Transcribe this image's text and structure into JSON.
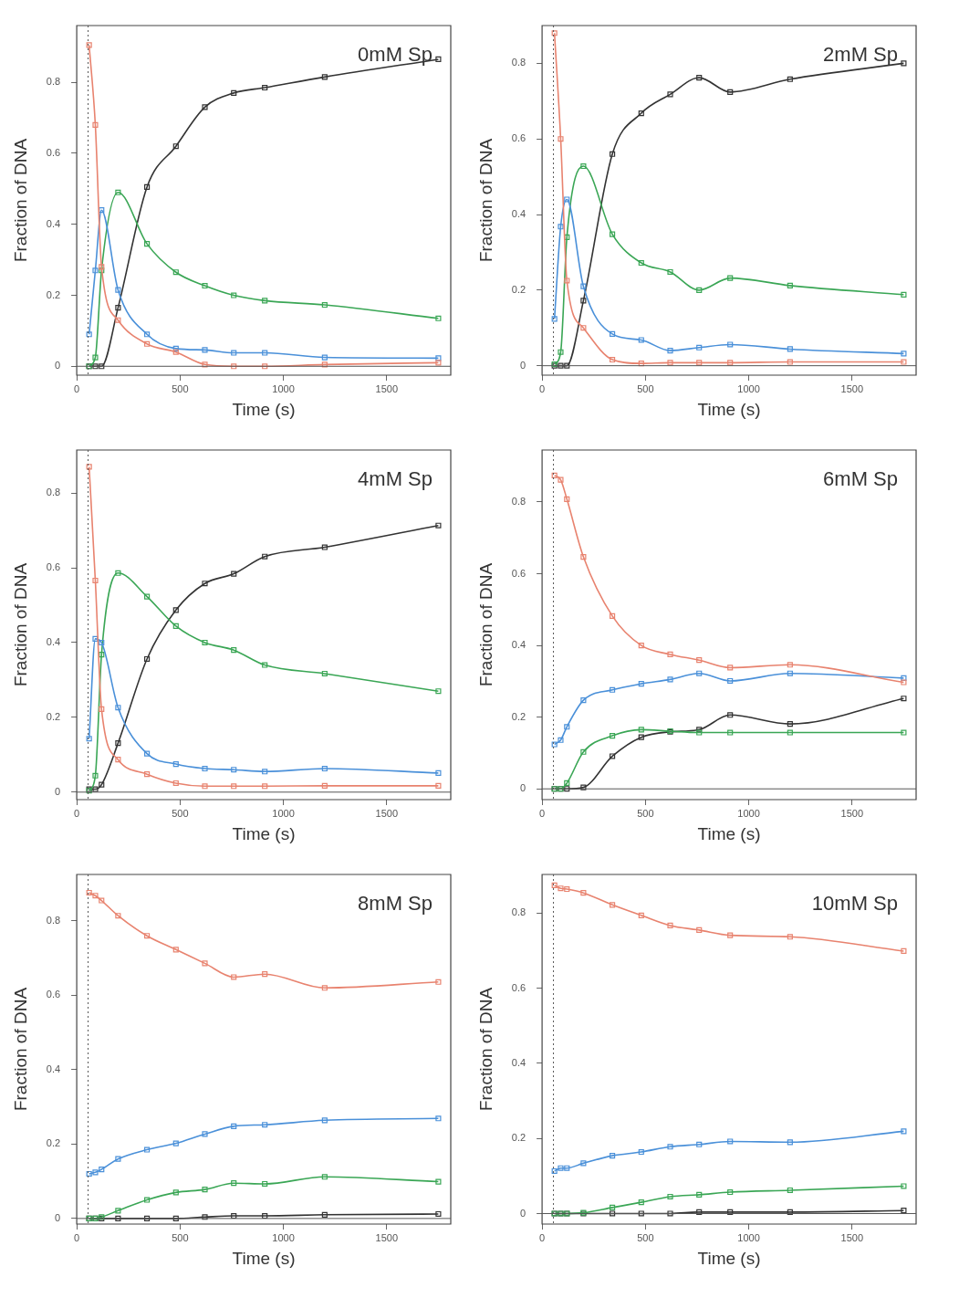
{
  "chart_data": [
    {
      "type": "line",
      "title": "0mM Sp",
      "xlabel": "Time (s)",
      "ylabel": "Fraction of DNA",
      "x": [
        60,
        90,
        120,
        200,
        340,
        480,
        620,
        760,
        910,
        1200,
        1750
      ],
      "xlim": [
        0,
        1810
      ],
      "xticks": [
        0,
        500,
        1000,
        1500
      ],
      "ylim": [
        -0.025,
        0.96
      ],
      "yticks": [
        0,
        0.2,
        0.4,
        0.6,
        0.8
      ],
      "marker": "square",
      "line_style": "solid",
      "grid": false,
      "legend": false,
      "ref_lines": [
        {
          "axis": "y",
          "value": 0,
          "color": "#555555",
          "line_style": "solid"
        },
        {
          "axis": "x",
          "value": 55,
          "color": "#555555",
          "line_style": "dotted"
        }
      ],
      "series": [
        {
          "color": "#e8836f",
          "values": [
            0.905,
            0.68,
            0.28,
            0.13,
            0.063,
            0.04,
            0.005,
            0,
            0,
            0.005,
            0.01
          ]
        },
        {
          "color": "#4a90d9",
          "values": [
            0.09,
            0.27,
            0.44,
            0.215,
            0.09,
            0.05,
            0.046,
            0.038,
            0.038,
            0.025,
            0.023
          ]
        },
        {
          "color": "#3aa655",
          "values": [
            0,
            0.025,
            0.27,
            0.49,
            0.345,
            0.265,
            0.227,
            0.2,
            0.185,
            0.173,
            0.135
          ]
        },
        {
          "color": "#333333",
          "values": [
            0,
            0,
            0,
            0.165,
            0.505,
            0.62,
            0.73,
            0.77,
            0.785,
            0.815,
            0.865
          ]
        }
      ]
    },
    {
      "type": "line",
      "title": "2mM Sp",
      "xlabel": "Time (s)",
      "ylabel": "Fraction of DNA",
      "x": [
        60,
        90,
        120,
        200,
        340,
        480,
        620,
        760,
        910,
        1200,
        1750
      ],
      "xlim": [
        0,
        1810
      ],
      "xticks": [
        0,
        500,
        1000,
        1500
      ],
      "ylim": [
        -0.025,
        0.9
      ],
      "yticks": [
        0,
        0.2,
        0.4,
        0.6,
        0.8
      ],
      "marker": "square",
      "line_style": "solid",
      "grid": false,
      "legend": false,
      "ref_lines": [
        {
          "axis": "y",
          "value": 0,
          "color": "#555555",
          "line_style": "solid"
        },
        {
          "axis": "x",
          "value": 55,
          "color": "#555555",
          "line_style": "dotted"
        }
      ],
      "series": [
        {
          "color": "#e8836f",
          "values": [
            0.88,
            0.6,
            0.225,
            0.1,
            0.016,
            0.006,
            0.008,
            0.008,
            0.008,
            0.01,
            0.01
          ]
        },
        {
          "color": "#4a90d9",
          "values": [
            0.124,
            0.368,
            0.44,
            0.21,
            0.084,
            0.068,
            0.04,
            0.048,
            0.056,
            0.044,
            0.032
          ]
        },
        {
          "color": "#3aa655",
          "values": [
            0.004,
            0.036,
            0.34,
            0.528,
            0.348,
            0.272,
            0.248,
            0.2,
            0.232,
            0.212,
            0.188
          ]
        },
        {
          "color": "#333333",
          "values": [
            0,
            0,
            0,
            0.172,
            0.56,
            0.668,
            0.718,
            0.762,
            0.724,
            0.758,
            0.8
          ]
        }
      ]
    },
    {
      "type": "line",
      "title": "4mM Sp",
      "xlabel": "Time (s)",
      "ylabel": "Fraction of DNA",
      "x": [
        60,
        90,
        120,
        200,
        340,
        480,
        620,
        760,
        910,
        1200,
        1750
      ],
      "xlim": [
        0,
        1810
      ],
      "xticks": [
        0,
        500,
        1000,
        1500
      ],
      "ylim": [
        -0.02,
        0.915
      ],
      "yticks": [
        0,
        0.2,
        0.4,
        0.6,
        0.8
      ],
      "marker": "square",
      "line_style": "solid",
      "grid": false,
      "legend": false,
      "ref_lines": [
        {
          "axis": "y",
          "value": 0,
          "color": "#555555",
          "line_style": "solid"
        },
        {
          "axis": "x",
          "value": 55,
          "color": "#555555",
          "line_style": "dotted"
        }
      ],
      "series": [
        {
          "color": "#e8836f",
          "values": [
            0.87,
            0.566,
            0.222,
            0.087,
            0.048,
            0.024,
            0.016,
            0.016,
            0.016,
            0.017,
            0.017
          ]
        },
        {
          "color": "#4a90d9",
          "values": [
            0.143,
            0.41,
            0.4,
            0.226,
            0.103,
            0.075,
            0.063,
            0.06,
            0.055,
            0.063,
            0.051
          ]
        },
        {
          "color": "#3aa655",
          "values": [
            0.004,
            0.044,
            0.368,
            0.586,
            0.523,
            0.444,
            0.4,
            0.38,
            0.34,
            0.317,
            0.27
          ]
        },
        {
          "color": "#333333",
          "values": [
            0.008,
            0.008,
            0.02,
            0.131,
            0.356,
            0.487,
            0.558,
            0.584,
            0.63,
            0.655,
            0.713
          ]
        }
      ]
    },
    {
      "type": "line",
      "title": "6mM Sp",
      "xlabel": "Time (s)",
      "ylabel": "Fraction of DNA",
      "x": [
        60,
        90,
        120,
        200,
        340,
        480,
        620,
        760,
        910,
        1200,
        1750
      ],
      "xlim": [
        0,
        1810
      ],
      "xticks": [
        0,
        500,
        1000,
        1500
      ],
      "ylim": [
        -0.03,
        0.945
      ],
      "yticks": [
        0,
        0.2,
        0.4,
        0.6,
        0.8
      ],
      "marker": "square",
      "line_style": "solid",
      "grid": false,
      "legend": false,
      "ref_lines": [
        {
          "axis": "y",
          "value": 0,
          "color": "#555555",
          "line_style": "solid"
        },
        {
          "axis": "x",
          "value": 55,
          "color": "#555555",
          "line_style": "dotted"
        }
      ],
      "series": [
        {
          "color": "#e8836f",
          "values": [
            0.874,
            0.862,
            0.808,
            0.647,
            0.482,
            0.4,
            0.375,
            0.359,
            0.338,
            0.346,
            0.297
          ]
        },
        {
          "color": "#4a90d9",
          "values": [
            0.124,
            0.136,
            0.173,
            0.247,
            0.276,
            0.293,
            0.305,
            0.322,
            0.301,
            0.322,
            0.309
          ]
        },
        {
          "color": "#3aa655",
          "values": [
            0,
            0,
            0.016,
            0.103,
            0.148,
            0.165,
            0.161,
            0.157,
            0.157,
            0.157,
            0.157
          ]
        },
        {
          "color": "#333333",
          "values": [
            0,
            0,
            0,
            0.004,
            0.091,
            0.144,
            0.159,
            0.165,
            0.206,
            0.181,
            0.252
          ]
        }
      ]
    },
    {
      "type": "line",
      "title": "8mM Sp",
      "xlabel": "Time (s)",
      "ylabel": "Fraction of DNA",
      "x": [
        60,
        90,
        120,
        200,
        340,
        480,
        620,
        760,
        910,
        1200,
        1750
      ],
      "xlim": [
        0,
        1810
      ],
      "xticks": [
        0,
        500,
        1000,
        1500
      ],
      "ylim": [
        -0.015,
        0.925
      ],
      "yticks": [
        0,
        0.2,
        0.4,
        0.6,
        0.8
      ],
      "marker": "square",
      "line_style": "solid",
      "grid": false,
      "legend": false,
      "ref_lines": [
        {
          "axis": "y",
          "value": 0,
          "color": "#555555",
          "line_style": "solid"
        },
        {
          "axis": "x",
          "value": 55,
          "color": "#555555",
          "line_style": "dotted"
        }
      ],
      "series": [
        {
          "color": "#e8836f",
          "values": [
            0.876,
            0.868,
            0.855,
            0.814,
            0.76,
            0.723,
            0.686,
            0.649,
            0.657,
            0.62,
            0.636
          ]
        },
        {
          "color": "#4a90d9",
          "values": [
            0.12,
            0.124,
            0.132,
            0.16,
            0.185,
            0.202,
            0.227,
            0.248,
            0.252,
            0.264,
            0.269
          ]
        },
        {
          "color": "#3aa655",
          "values": [
            0,
            0,
            0.004,
            0.021,
            0.05,
            0.07,
            0.078,
            0.095,
            0.093,
            0.112,
            0.099
          ]
        },
        {
          "color": "#333333",
          "values": [
            0,
            0,
            0,
            0,
            0,
            0,
            0.004,
            0.007,
            0.007,
            0.01,
            0.012
          ]
        }
      ]
    },
    {
      "type": "line",
      "title": "10mM Sp",
      "xlabel": "Time (s)",
      "ylabel": "Fraction of DNA",
      "x": [
        60,
        90,
        120,
        200,
        340,
        480,
        620,
        760,
        910,
        1200,
        1750
      ],
      "xlim": [
        0,
        1810
      ],
      "xticks": [
        0,
        500,
        1000,
        1500
      ],
      "ylim": [
        -0.028,
        0.903
      ],
      "yticks": [
        0,
        0.2,
        0.4,
        0.6,
        0.8
      ],
      "marker": "square",
      "line_style": "solid",
      "grid": false,
      "legend": false,
      "ref_lines": [
        {
          "axis": "y",
          "value": 0,
          "color": "#555555",
          "line_style": "solid"
        },
        {
          "axis": "x",
          "value": 55,
          "color": "#555555",
          "line_style": "dotted"
        }
      ],
      "series": [
        {
          "color": "#e8836f",
          "values": [
            0.874,
            0.866,
            0.864,
            0.854,
            0.822,
            0.794,
            0.767,
            0.755,
            0.741,
            0.737,
            0.699
          ]
        },
        {
          "color": "#4a90d9",
          "values": [
            0.113,
            0.121,
            0.121,
            0.134,
            0.154,
            0.164,
            0.178,
            0.184,
            0.192,
            0.19,
            0.219
          ]
        },
        {
          "color": "#3aa655",
          "values": [
            0,
            0,
            0,
            0.002,
            0.016,
            0.03,
            0.045,
            0.05,
            0.057,
            0.062,
            0.073
          ]
        },
        {
          "color": "#333333",
          "values": [
            0,
            0,
            0,
            0,
            0,
            0,
            0,
            0.004,
            0.004,
            0.004,
            0.008
          ]
        }
      ]
    }
  ]
}
